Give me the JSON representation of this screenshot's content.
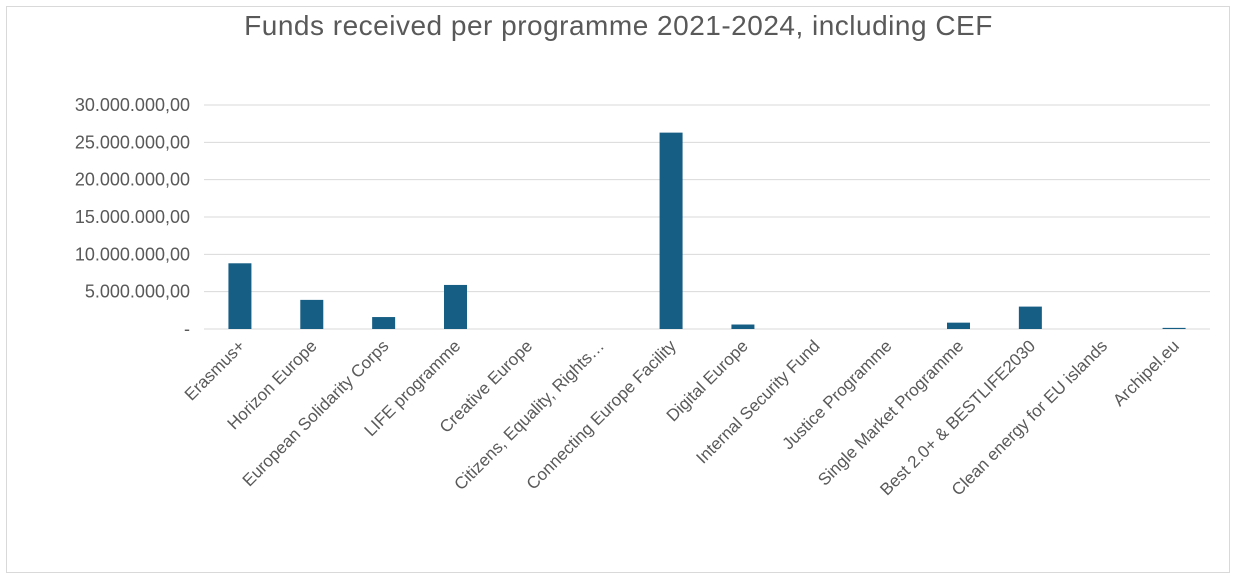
{
  "chart_data": {
    "type": "bar",
    "title": "Funds received per programme 2021-2024, including CEF",
    "xlabel": "",
    "ylabel": "",
    "ylim": [
      0,
      30000000
    ],
    "yticks": [
      0,
      5000000,
      10000000,
      15000000,
      20000000,
      25000000,
      30000000
    ],
    "ytick_labels": [
      "-",
      "5.000.000,00",
      "10.000.000,00",
      "15.000.000,00",
      "20.000.000,00",
      "25.000.000,00",
      "30.000.000,00"
    ],
    "grid": true,
    "legend": "none",
    "bar_color": "#175e84",
    "categories": [
      "Erasmus+",
      "Horizon Europe",
      "European Solidarity Corps",
      "LIFE programme",
      "Creative Europe",
      "Citizens, Equality, Rights…",
      "Connecting Europe Facility",
      "Digital Europe",
      "Internal Security Fund",
      "Justice Programme",
      "Single Market Programme",
      "Best 2.0+ & BESTLIFE2030",
      "Clean energy for EU islands",
      "Archipel.eu"
    ],
    "values": [
      8800000,
      3900000,
      1600000,
      5900000,
      0,
      0,
      26300000,
      600000,
      0,
      0,
      850000,
      3000000,
      0,
      150000
    ]
  }
}
